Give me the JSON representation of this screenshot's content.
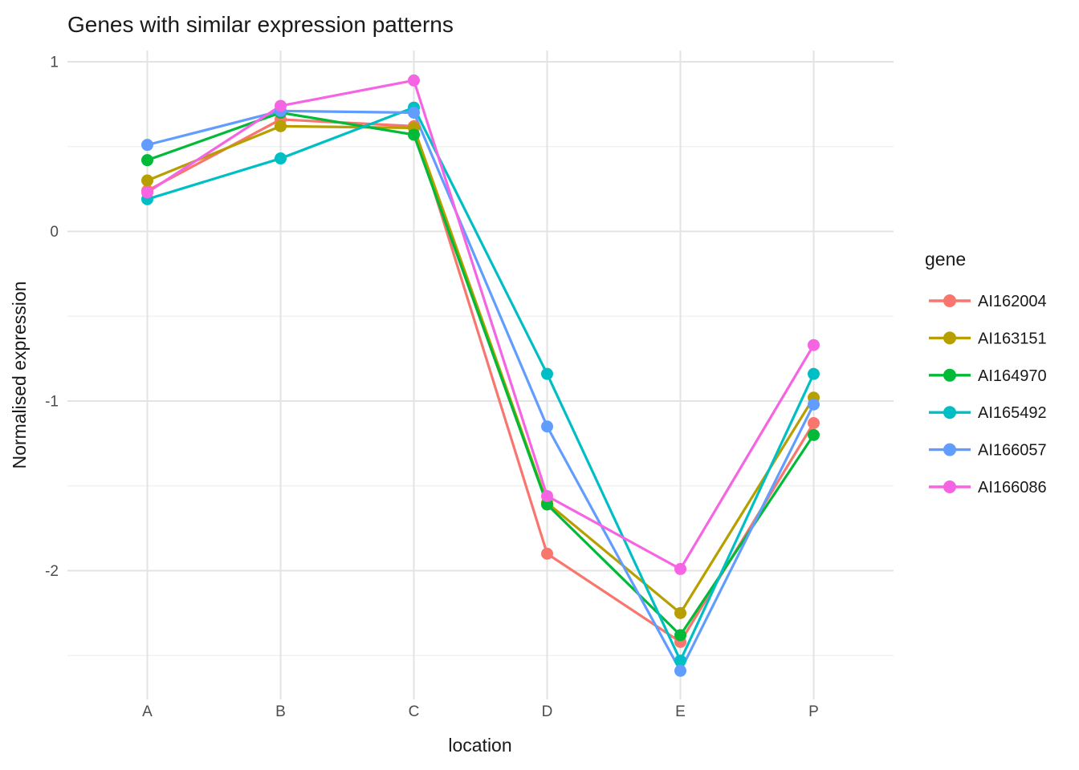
{
  "title": "Genes with similar expression patterns",
  "chart_data": {
    "type": "line",
    "title": "Genes with similar expression patterns",
    "xlabel": "location",
    "ylabel": "Normalised expression",
    "categories": [
      "A",
      "B",
      "C",
      "D",
      "E",
      "P"
    ],
    "yticks": [
      1,
      0,
      -1,
      -2
    ],
    "ytick_labels": [
      "1",
      "0",
      "-1",
      "-2"
    ],
    "ylim": [
      -2.76,
      1.07
    ],
    "grid": "horizontal major+minor, vertical major at categories; minimal theme, white background",
    "legend_title": "gene",
    "legend_position": "right",
    "series": [
      {
        "name": "AI162004",
        "color": "#F8766D",
        "values": [
          0.24,
          0.66,
          0.62,
          -1.9,
          -2.42,
          -1.13
        ]
      },
      {
        "name": "AI163151",
        "color": "#B79F00",
        "values": [
          0.3,
          0.62,
          0.61,
          -1.6,
          -2.25,
          -0.98
        ]
      },
      {
        "name": "AI164970",
        "color": "#00BA38",
        "values": [
          0.42,
          0.7,
          0.57,
          -1.61,
          -2.38,
          -1.2
        ]
      },
      {
        "name": "AI165492",
        "color": "#00BFC4",
        "values": [
          0.19,
          0.43,
          0.73,
          -0.84,
          -2.53,
          -0.84
        ]
      },
      {
        "name": "AI166057",
        "color": "#619CFF",
        "values": [
          0.51,
          0.71,
          0.7,
          -1.15,
          -2.59,
          -1.02
        ]
      },
      {
        "name": "AI166086",
        "color": "#F564E3",
        "values": [
          0.23,
          0.74,
          0.89,
          -1.56,
          -1.99,
          -0.67
        ]
      }
    ],
    "style_colors": {
      "grid_major": "#e3e3e3",
      "grid_minor": "#efefef",
      "tick_text": "#4d4d4d",
      "title_text": "#1a1a1a"
    }
  }
}
